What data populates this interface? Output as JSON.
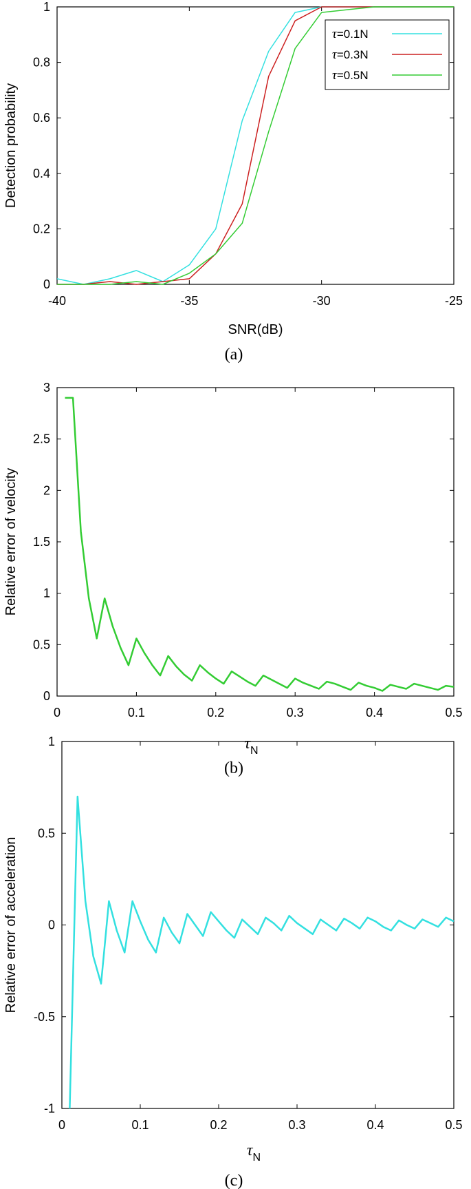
{
  "chart_data": [
    {
      "type": "line",
      "caption": "(a)",
      "xlabel": "SNR(dB)",
      "ylabel": "Detection probability",
      "xlim": [
        -40,
        -25
      ],
      "ylim": [
        0,
        1
      ],
      "xticks": [
        -40,
        -35,
        -30,
        -25
      ],
      "xtick_labels": [
        "-40",
        "-35",
        "-30",
        "-25"
      ],
      "yticks": [
        0,
        0.2,
        0.4,
        0.6,
        0.8,
        1
      ],
      "ytick_labels": [
        "0",
        "0.2",
        "0.4",
        "0.6",
        "0.8",
        "1"
      ],
      "grid": false,
      "legend": "top-right",
      "x": [
        -40,
        -39,
        -38,
        -37,
        -36,
        -35,
        -34,
        -33,
        -32,
        -31,
        -30,
        -29,
        -28,
        -27,
        -26,
        -25
      ],
      "series": [
        {
          "name": "τ=0.1N",
          "legend_symbol": "τ",
          "legend_rest": "=0.1N",
          "color": "#33e0e0",
          "values": [
            0.02,
            0,
            0.02,
            0.05,
            0.01,
            0.07,
            0.2,
            0.59,
            0.84,
            0.98,
            1,
            1,
            1,
            1,
            1,
            1
          ]
        },
        {
          "name": "τ=0.3N",
          "legend_symbol": "τ",
          "legend_rest": "=0.3N",
          "color": "#cc2020",
          "values": [
            0,
            0,
            0.01,
            0,
            0.01,
            0.02,
            0.11,
            0.29,
            0.75,
            0.95,
            1,
            1,
            1,
            1,
            1,
            1
          ]
        },
        {
          "name": "τ=0.5N",
          "legend_symbol": "τ",
          "legend_rest": "=0.5N",
          "color": "#33cc33",
          "values": [
            0,
            0,
            0,
            0.01,
            0,
            0.04,
            0.11,
            0.22,
            0.55,
            0.85,
            0.98,
            0.99,
            1,
            1,
            1,
            1
          ]
        }
      ]
    },
    {
      "type": "line",
      "caption": "(b)",
      "xlabel_symbol": "τ",
      "xlabel_sub": "N",
      "ylabel": "Relative error of velocity",
      "xlim": [
        0,
        0.5
      ],
      "ylim": [
        0,
        3
      ],
      "xticks": [
        0,
        0.1,
        0.2,
        0.3,
        0.4,
        0.5
      ],
      "xtick_labels": [
        "0",
        "0.1",
        "0.2",
        "0.3",
        "0.4",
        "0.5"
      ],
      "yticks": [
        0,
        0.5,
        1,
        1.5,
        2,
        2.5,
        3
      ],
      "ytick_labels": [
        "0",
        "0.5",
        "1",
        "1.5",
        "2",
        "2.5",
        "3"
      ],
      "grid": false,
      "series": [
        {
          "color": "#33cc33",
          "x": [
            0.01,
            0.02,
            0.03,
            0.04,
            0.05,
            0.06,
            0.07,
            0.08,
            0.09,
            0.1,
            0.11,
            0.12,
            0.13,
            0.14,
            0.15,
            0.16,
            0.17,
            0.18,
            0.19,
            0.2,
            0.21,
            0.22,
            0.23,
            0.24,
            0.25,
            0.26,
            0.27,
            0.28,
            0.29,
            0.3,
            0.31,
            0.32,
            0.33,
            0.34,
            0.35,
            0.36,
            0.37,
            0.38,
            0.39,
            0.4,
            0.41,
            0.42,
            0.43,
            0.44,
            0.45,
            0.46,
            0.47,
            0.48,
            0.49,
            0.5
          ],
          "values": [
            2.9,
            2.9,
            1.6,
            0.95,
            0.56,
            0.95,
            0.68,
            0.47,
            0.3,
            0.56,
            0.42,
            0.3,
            0.2,
            0.39,
            0.29,
            0.21,
            0.15,
            0.3,
            0.23,
            0.17,
            0.12,
            0.24,
            0.19,
            0.14,
            0.1,
            0.2,
            0.16,
            0.12,
            0.08,
            0.17,
            0.13,
            0.1,
            0.07,
            0.14,
            0.12,
            0.09,
            0.06,
            0.13,
            0.1,
            0.08,
            0.05,
            0.11,
            0.09,
            0.07,
            0.12,
            0.1,
            0.08,
            0.06,
            0.1,
            0.09
          ]
        }
      ]
    },
    {
      "type": "line",
      "caption": "(c)",
      "xlabel_symbol": "τ",
      "xlabel_sub": "N",
      "ylabel": "Relative error of acceleration",
      "xlim": [
        0,
        0.5
      ],
      "ylim": [
        -1,
        1
      ],
      "xticks": [
        0,
        0.1,
        0.2,
        0.3,
        0.4,
        0.5
      ],
      "xtick_labels": [
        "0",
        "0.1",
        "0.2",
        "0.3",
        "0.4",
        "0.5"
      ],
      "yticks": [
        -1,
        -0.5,
        0,
        0.5,
        1
      ],
      "ytick_labels": [
        "-1",
        "-0.5",
        "0",
        "0.5",
        "1"
      ],
      "grid": false,
      "series": [
        {
          "color": "#33e0e0",
          "x": [
            0.01,
            0.02,
            0.03,
            0.04,
            0.05,
            0.06,
            0.07,
            0.08,
            0.09,
            0.1,
            0.11,
            0.12,
            0.13,
            0.14,
            0.15,
            0.16,
            0.17,
            0.18,
            0.19,
            0.2,
            0.21,
            0.22,
            0.23,
            0.24,
            0.25,
            0.26,
            0.27,
            0.28,
            0.29,
            0.3,
            0.31,
            0.32,
            0.33,
            0.34,
            0.35,
            0.36,
            0.37,
            0.38,
            0.39,
            0.4,
            0.41,
            0.42,
            0.43,
            0.44,
            0.45,
            0.46,
            0.47,
            0.48,
            0.49,
            0.5
          ],
          "values": [
            -1.0,
            0.7,
            0.13,
            -0.17,
            -0.32,
            0.13,
            -0.03,
            -0.15,
            0.13,
            0.02,
            -0.08,
            -0.15,
            0.04,
            -0.04,
            -0.1,
            0.06,
            0.0,
            -0.06,
            0.07,
            0.02,
            -0.03,
            -0.07,
            0.03,
            -0.01,
            -0.05,
            0.04,
            0.01,
            -0.03,
            0.05,
            0.01,
            -0.02,
            -0.05,
            0.03,
            0.0,
            -0.03,
            0.035,
            0.01,
            -0.02,
            0.04,
            0.02,
            -0.01,
            -0.03,
            0.025,
            0.0,
            -0.02,
            0.03,
            0.01,
            -0.01,
            0.04,
            0.02
          ]
        }
      ]
    }
  ]
}
